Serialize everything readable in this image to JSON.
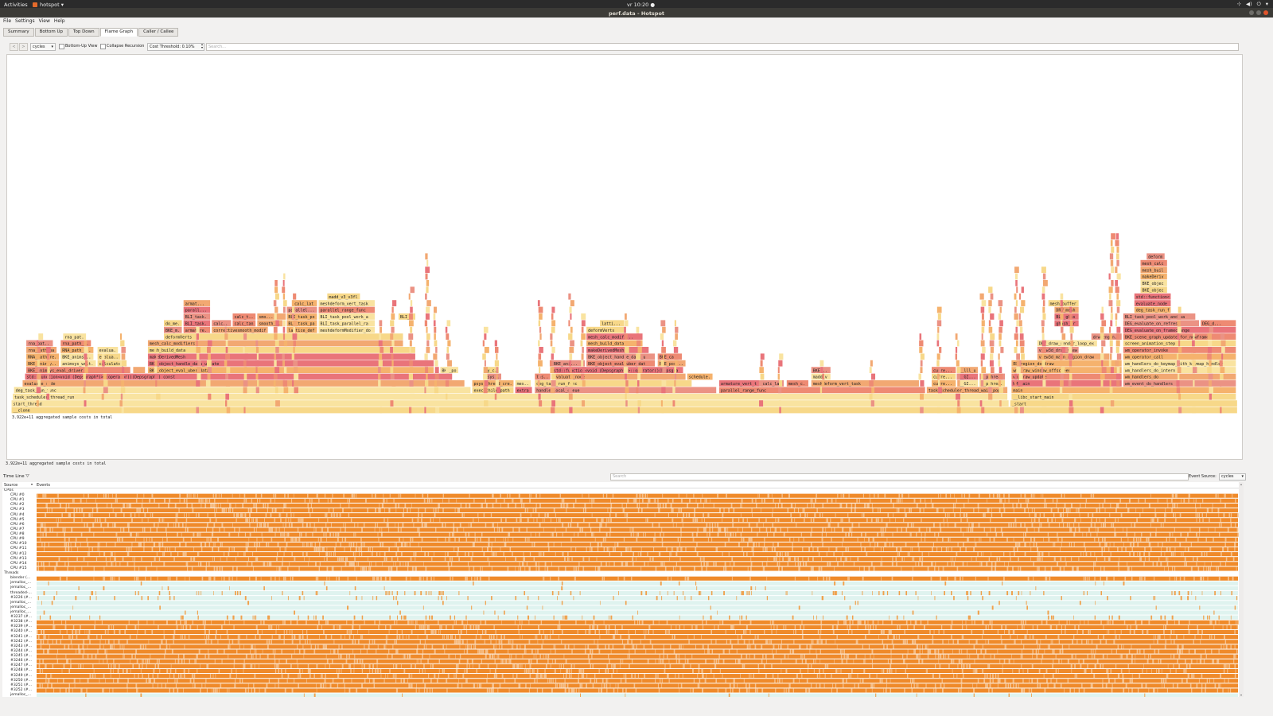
{
  "topbar": {
    "activities": "Activities",
    "app_name": "hotspot",
    "clock": "vr 10:20 ●"
  },
  "window": {
    "title": "perf.data - Hotspot"
  },
  "menu": [
    "File",
    "Settings",
    "View",
    "Help"
  ],
  "tabs": [
    {
      "label": "Summary",
      "active": false
    },
    {
      "label": "Bottom Up",
      "active": false
    },
    {
      "label": "Top Down",
      "active": false
    },
    {
      "label": "Flame Graph",
      "active": true
    },
    {
      "label": "Caller / Callee",
      "active": false
    }
  ],
  "toolbar": {
    "back": "<",
    "forward": ">",
    "event_type": "cycles",
    "bottom_up_label": "Bottom-Up View",
    "collapse_label": "Collapse Recursion",
    "cost_threshold": "Cost Threshold: 0.10%",
    "search_placeholder": "Search..."
  },
  "flame": {
    "frames": [
      {
        "depth": 0,
        "start": 0.001,
        "end": 0.999,
        "label": "__clone"
      },
      {
        "depth": 1,
        "start": 0.001,
        "end": 0.813,
        "label": "start_thread"
      },
      {
        "depth": 1,
        "start": 0.814,
        "end": 0.999,
        "label": "_start"
      },
      {
        "depth": 2,
        "start": 0.002,
        "end": 0.812,
        "label": "task_scheduler_thread_run"
      },
      {
        "depth": 2,
        "start": 0.815,
        "end": 0.998,
        "label": "__libc_start_main"
      },
      {
        "depth": 3,
        "start": 0.003,
        "end": 0.375,
        "label": "deg_task_run_func"
      },
      {
        "depth": 3,
        "start": 0.376,
        "end": 0.41,
        "label": "exec_child_path"
      },
      {
        "depth": 3,
        "start": 0.411,
        "end": 0.425,
        "label": "extra..."
      },
      {
        "depth": 3,
        "start": 0.427,
        "end": 0.575,
        "label": "handle_local_queue"
      },
      {
        "depth": 3,
        "start": 0.577,
        "end": 0.745,
        "label": "parallel_range_func"
      },
      {
        "depth": 3,
        "start": 0.746,
        "end": 0.812,
        "label": "task_scheduler_thread_wait_pop"
      },
      {
        "depth": 3,
        "start": 0.815,
        "end": 0.998,
        "label": "main"
      },
      {
        "depth": 4,
        "start": 0.01,
        "end": 0.37,
        "label": "evaluate_node"
      },
      {
        "depth": 4,
        "start": 0.376,
        "end": 0.41,
        "label": "psys_thread_cre..."
      },
      {
        "depth": 4,
        "start": 0.411,
        "end": 0.424,
        "label": "mes..."
      },
      {
        "depth": 4,
        "start": 0.427,
        "end": 0.555,
        "label": "deg_task_run_func"
      },
      {
        "depth": 4,
        "start": 0.577,
        "end": 0.61,
        "label": "armature_vert_task"
      },
      {
        "depth": 4,
        "start": 0.611,
        "end": 0.63,
        "label": "calc_lat"
      },
      {
        "depth": 4,
        "start": 0.632,
        "end": 0.65,
        "label": "mesh_c..."
      },
      {
        "depth": 4,
        "start": 0.652,
        "end": 0.74,
        "label": "meshdeform_vert_task"
      },
      {
        "depth": 4,
        "start": 0.75,
        "end": 0.77,
        "label": "curre..."
      },
      {
        "depth": 4,
        "start": 0.771,
        "end": 0.788,
        "label": "__GI..."
      },
      {
        "depth": 4,
        "start": 0.789,
        "end": 0.81,
        "label": "__pthrea..."
      },
      {
        "depth": 4,
        "start": 0.815,
        "end": 0.905,
        "label": "WM_main"
      },
      {
        "depth": 4,
        "start": 0.906,
        "end": 0.998,
        "label": "wm_event_do_handlers"
      },
      {
        "depth": 5,
        "start": 0.012,
        "end": 0.36,
        "label": "std::function<void (Depsgraph*)>::operator()(Depsgraph*) const"
      },
      {
        "depth": 5,
        "start": 0.385,
        "end": 0.4,
        "label": "psys_..."
      },
      {
        "depth": 5,
        "start": 0.427,
        "end": 0.44,
        "label": "tas..."
      },
      {
        "depth": 5,
        "start": 0.441,
        "end": 0.55,
        "label": "evaluate_node"
      },
      {
        "depth": 5,
        "start": 0.551,
        "end": 0.572,
        "label": "schedule..."
      },
      {
        "depth": 5,
        "start": 0.652,
        "end": 0.668,
        "label": "madd_v3_v3fl"
      },
      {
        "depth": 5,
        "start": 0.75,
        "end": 0.77,
        "label": "curre..."
      },
      {
        "depth": 5,
        "start": 0.771,
        "end": 0.788,
        "label": "__GI..."
      },
      {
        "depth": 5,
        "start": 0.789,
        "end": 0.81,
        "label": "__pthrea..."
      },
      {
        "depth": 5,
        "start": 0.815,
        "end": 0.905,
        "label": "wm_draw_update"
      },
      {
        "depth": 5,
        "start": 0.906,
        "end": 0.998,
        "label": "wm_handlers_do"
      },
      {
        "depth": 6,
        "start": 0.013,
        "end": 0.098,
        "label": "BKE_animsys_eval_driver"
      },
      {
        "depth": 6,
        "start": 0.1,
        "end": 0.11,
        "label": "BKE..."
      },
      {
        "depth": 6,
        "start": 0.112,
        "end": 0.345,
        "label": "BKE_object_eval_uber_data"
      },
      {
        "depth": 6,
        "start": 0.35,
        "end": 0.365,
        "label": "BKE_po..."
      },
      {
        "depth": 6,
        "start": 0.385,
        "end": 0.398,
        "label": "dy_c..."
      },
      {
        "depth": 6,
        "start": 0.441,
        "end": 0.548,
        "label": "std::function<void (Depsgraph*)>::operator()(Depsgraph*) c"
      },
      {
        "depth": 6,
        "start": 0.652,
        "end": 0.668,
        "label": "BKE..."
      },
      {
        "depth": 6,
        "start": 0.75,
        "end": 0.77,
        "label": "curre..."
      },
      {
        "depth": 6,
        "start": 0.771,
        "end": 0.788,
        "label": "__lll_u..."
      },
      {
        "depth": 6,
        "start": 0.815,
        "end": 0.905,
        "label": "wm_draw_window_offscreen"
      },
      {
        "depth": 6,
        "start": 0.906,
        "end": 0.998,
        "label": "wm_handlers_do_intern"
      },
      {
        "depth": 7,
        "start": 0.013,
        "end": 0.04,
        "label": "BKE_animsy..."
      },
      {
        "depth": 7,
        "start": 0.041,
        "end": 0.07,
        "label": "animsys_writ..."
      },
      {
        "depth": 7,
        "start": 0.071,
        "end": 0.095,
        "label": "calculate_f"
      },
      {
        "depth": 7,
        "start": 0.112,
        "end": 0.345,
        "label": "BKE_object_handle_data_update"
      },
      {
        "depth": 7,
        "start": 0.441,
        "end": 0.468,
        "label": "BKE_ani..."
      },
      {
        "depth": 7,
        "start": 0.469,
        "end": 0.525,
        "label": "BKE_object_eval_uber_dat"
      },
      {
        "depth": 7,
        "start": 0.527,
        "end": 0.55,
        "label": "BKE_pos..."
      },
      {
        "depth": 7,
        "start": 0.815,
        "end": 0.905,
        "label": "ED_region_do_draw"
      },
      {
        "depth": 7,
        "start": 0.906,
        "end": 0.998,
        "label": "wm_handlers_do_keymap_with_keymap_handler"
      },
      {
        "depth": 8,
        "start": 0.013,
        "end": 0.04,
        "label": "RNA_path_re..."
      },
      {
        "depth": 8,
        "start": 0.041,
        "end": 0.068,
        "label": "BKE_animsy..."
      },
      {
        "depth": 8,
        "start": 0.071,
        "end": 0.09,
        "label": "evalua..."
      },
      {
        "depth": 8,
        "start": 0.112,
        "end": 0.33,
        "label": "makeDerivedMesh"
      },
      {
        "depth": 8,
        "start": 0.469,
        "end": 0.525,
        "label": "BKE_object_handle_data_u"
      },
      {
        "depth": 8,
        "start": 0.527,
        "end": 0.547,
        "label": "BKE_ca..."
      },
      {
        "depth": 8,
        "start": 0.836,
        "end": 0.895,
        "label": "view3d_main_region_draw"
      },
      {
        "depth": 8,
        "start": 0.906,
        "end": 0.998,
        "label": "wm_operator_call"
      },
      {
        "depth": 9,
        "start": 0.013,
        "end": 0.038,
        "label": "rna_path_pa..."
      },
      {
        "depth": 9,
        "start": 0.041,
        "end": 0.068,
        "label": "RNA_path_r..."
      },
      {
        "depth": 9,
        "start": 0.071,
        "end": 0.088,
        "label": "evalua..."
      },
      {
        "depth": 9,
        "start": 0.112,
        "end": 0.33,
        "label": "mesh_build_data"
      },
      {
        "depth": 9,
        "start": 0.469,
        "end": 0.52,
        "label": "makeDerivedMesh"
      },
      {
        "depth": 9,
        "start": 0.836,
        "end": 0.87,
        "label": "view3d_draw_view"
      },
      {
        "depth": 9,
        "start": 0.906,
        "end": 0.998,
        "label": "wm_operator_invoke"
      },
      {
        "depth": 10,
        "start": 0.013,
        "end": 0.035,
        "label": "rna_pat..."
      },
      {
        "depth": 10,
        "start": 0.041,
        "end": 0.066,
        "label": "rna_path_p..."
      },
      {
        "depth": 10,
        "start": 0.112,
        "end": 0.32,
        "label": "mesh_calc_modifiers"
      },
      {
        "depth": 10,
        "start": 0.469,
        "end": 0.515,
        "label": "mesh_build_data"
      },
      {
        "depth": 10,
        "start": 0.836,
        "end": 0.885,
        "label": "DRW_draw_render_loop_ex"
      },
      {
        "depth": 10,
        "start": 0.906,
        "end": 0.998,
        "label": "screen_animation_step"
      },
      {
        "depth": 11,
        "start": 0.043,
        "end": 0.062,
        "label": "rna_pat..."
      },
      {
        "depth": 11,
        "start": 0.125,
        "end": 0.32,
        "label": "deformVerts"
      },
      {
        "depth": 11,
        "start": 0.469,
        "end": 0.515,
        "label": "mesh_calc_modifi..."
      },
      {
        "depth": 11,
        "start": 0.88,
        "end": 0.905,
        "label": "drw_engin..."
      },
      {
        "depth": 11,
        "start": 0.906,
        "end": 0.998,
        "label": "BKE_scene_graph_update_for_newframe"
      },
      {
        "depth": 12,
        "start": 0.125,
        "end": 0.14,
        "label": "BKE_m..."
      },
      {
        "depth": 12,
        "start": 0.141,
        "end": 0.163,
        "label": "armature..."
      },
      {
        "depth": 12,
        "start": 0.164,
        "end": 0.21,
        "label": "correctivesmooth_modifier_do"
      },
      {
        "depth": 12,
        "start": 0.225,
        "end": 0.25,
        "label": "lattice_defo"
      },
      {
        "depth": 12,
        "start": 0.251,
        "end": 0.297,
        "label": "meshdeformModifier_do"
      },
      {
        "depth": 12,
        "start": 0.469,
        "end": 0.5,
        "label": "deformVerts"
      },
      {
        "depth": 12,
        "start": 0.906,
        "end": 0.998,
        "label": "DEG_evaluate_on_framechange"
      },
      {
        "depth": 13,
        "start": 0.125,
        "end": 0.14,
        "label": "do_me..."
      },
      {
        "depth": 13,
        "start": 0.141,
        "end": 0.163,
        "label": "BLI_task..."
      },
      {
        "depth": 13,
        "start": 0.164,
        "end": 0.18,
        "label": "calc..."
      },
      {
        "depth": 13,
        "start": 0.181,
        "end": 0.2,
        "label": "calc_tan..."
      },
      {
        "depth": 13,
        "start": 0.201,
        "end": 0.222,
        "label": "smooth_..."
      },
      {
        "depth": 13,
        "start": 0.225,
        "end": 0.25,
        "label": "BLI_task_par"
      },
      {
        "depth": 13,
        "start": 0.251,
        "end": 0.297,
        "label": "BLI_task_parallel_ra"
      },
      {
        "depth": 13,
        "start": 0.48,
        "end": 0.5,
        "label": "latti..."
      },
      {
        "depth": 13,
        "start": 0.85,
        "end": 0.87,
        "label": "ghash_free_cb"
      },
      {
        "depth": 13,
        "start": 0.906,
        "end": 0.968,
        "label": "DEG_evaluate_on_refresh"
      },
      {
        "depth": 13,
        "start": 0.969,
        "end": 0.998,
        "label": "DEG_d..."
      },
      {
        "depth": 14,
        "start": 0.141,
        "end": 0.163,
        "label": "BLI_task..."
      },
      {
        "depth": 14,
        "start": 0.181,
        "end": 0.2,
        "label": "calc_t..."
      },
      {
        "depth": 14,
        "start": 0.201,
        "end": 0.222,
        "label": "smo..."
      },
      {
        "depth": 14,
        "start": 0.225,
        "end": 0.25,
        "label": "BLI_task_po..."
      },
      {
        "depth": 14,
        "start": 0.251,
        "end": 0.297,
        "label": "BLI_task_pool_work_a"
      },
      {
        "depth": 14,
        "start": 0.316,
        "end": 0.33,
        "label": "BLI_tas..."
      },
      {
        "depth": 14,
        "start": 0.85,
        "end": 0.87,
        "label": "BLI_ghash_free"
      },
      {
        "depth": 14,
        "start": 0.906,
        "end": 0.965,
        "label": "BLI_task_pool_work_and_wa"
      },
      {
        "depth": 15,
        "start": 0.141,
        "end": 0.163,
        "label": "parall..."
      },
      {
        "depth": 15,
        "start": 0.225,
        "end": 0.25,
        "label": "parallel..."
      },
      {
        "depth": 15,
        "start": 0.251,
        "end": 0.297,
        "label": "parallel_range_func"
      },
      {
        "depth": 15,
        "start": 0.85,
        "end": 0.87,
        "label": "DRW_mesh..."
      },
      {
        "depth": 15,
        "start": 0.915,
        "end": 0.945,
        "label": "deg_task_run_func"
      },
      {
        "depth": 16,
        "start": 0.141,
        "end": 0.163,
        "label": "armat..."
      },
      {
        "depth": 16,
        "start": 0.23,
        "end": 0.25,
        "label": "calc_latt..."
      },
      {
        "depth": 16,
        "start": 0.251,
        "end": 0.297,
        "label": "meshdeform_vert_task"
      },
      {
        "depth": 16,
        "start": 0.845,
        "end": 0.87,
        "label": "mesh_buffer..."
      },
      {
        "depth": 16,
        "start": 0.915,
        "end": 0.945,
        "label": "evaluate_node"
      },
      {
        "depth": 17,
        "start": 0.258,
        "end": 0.285,
        "label": "madd_v3_v3fl"
      },
      {
        "depth": 17,
        "start": 0.915,
        "end": 0.945,
        "label": "std::function<voi"
      },
      {
        "depth": 18,
        "start": 0.92,
        "end": 0.942,
        "label": "BKE_object..."
      },
      {
        "depth": 19,
        "start": 0.92,
        "end": 0.942,
        "label": "BKE_object..."
      },
      {
        "depth": 20,
        "start": 0.92,
        "end": 0.942,
        "label": "makeDeriv..."
      },
      {
        "depth": 21,
        "start": 0.92,
        "end": 0.942,
        "label": "mesh_buil..."
      },
      {
        "depth": 22,
        "start": 0.92,
        "end": 0.942,
        "label": "mesh_calc..."
      },
      {
        "depth": 23,
        "start": 0.925,
        "end": 0.94,
        "label": "deform..."
      }
    ],
    "footer_label": "3.922e+11 aggregated sample costs in total"
  },
  "status": {
    "total_text": "3.922e+11 aggregated sample costs in total"
  },
  "timeline": {
    "label": "Time Line",
    "search_placeholder": "Search",
    "event_source_label": "Event Source:",
    "event_source_value": "cycles",
    "col_source": "Source",
    "col_events": "Events",
    "groups": [
      {
        "label": "CPUs",
        "rows": [
          "CPU #0",
          "CPU #1",
          "CPU #2",
          "CPU #3",
          "CPU #4",
          "CPU #5",
          "CPU #6",
          "CPU #7",
          "CPU #8",
          "CPU #9",
          "CPU #10",
          "CPU #11",
          "CPU #12",
          "CPU #13",
          "CPU #14",
          "CPU #15"
        ]
      },
      {
        "label": "Threads",
        "rows": [
          "blender (...",
          "jemalloc_...",
          "jemalloc_...",
          "threaded-...",
          "#3226 (#...",
          "jemalloc_...",
          "jemalloc_...",
          "jemalloc_...",
          "#3237 (#...",
          "#3238 (#...",
          "#3239 (#...",
          "#3240 (#...",
          "#3241 (#...",
          "#3242 (#...",
          "#3243 (#...",
          "#3244 (#...",
          "#3245 (#...",
          "#3246 (#...",
          "#3247 (#...",
          "#3248 (#...",
          "#3249 (#...",
          "#3250 (#...",
          "#3251 (#...",
          "#3252 (#...",
          "jemalloc_..."
        ]
      }
    ],
    "thread_density": [
      0.95,
      0.05,
      0.05,
      0.35,
      0.2,
      0.05,
      0.05,
      0.05,
      0.3,
      0.9,
      0.9,
      0.9,
      0.9,
      0.9,
      0.9,
      0.9,
      0.9,
      0.9,
      0.9,
      0.9,
      0.9,
      0.9,
      0.9,
      0.9,
      0.05
    ]
  },
  "colors": {
    "flame_palette": [
      "#f7d889",
      "#f5b26d",
      "#ee8a73",
      "#e9747a",
      "#f9e3a0",
      "#f2a872",
      "#eb9284"
    ],
    "event_orange": "#ef8a2a",
    "thread_idle": "#dff3ef"
  }
}
